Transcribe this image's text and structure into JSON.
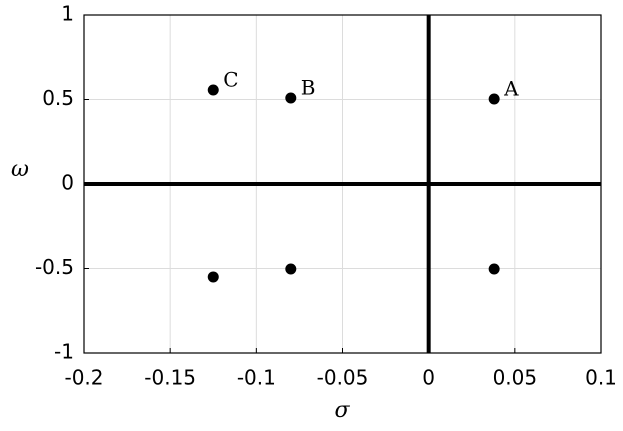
{
  "chart_data": {
    "type": "scatter",
    "x_label": "σ",
    "y_label": "ω",
    "x": [
      -0.125,
      -0.08,
      0.038,
      -0.125,
      -0.08,
      0.038
    ],
    "values": [
      0.556,
      0.509,
      0.503,
      -0.55,
      -0.503,
      -0.503
    ],
    "point_labels": [
      "C",
      "B",
      "A",
      null,
      null,
      null
    ],
    "color": "#000000",
    "xlim": [
      -0.2,
      0.1
    ],
    "xticks": [
      -0.2,
      -0.15,
      -0.1,
      -0.05,
      0,
      0.05,
      0.1
    ],
    "ylim": [
      -1,
      1
    ],
    "yticks": [
      -1,
      -0.5,
      0,
      0.5,
      1
    ],
    "grid": true,
    "zero_lines": true
  }
}
